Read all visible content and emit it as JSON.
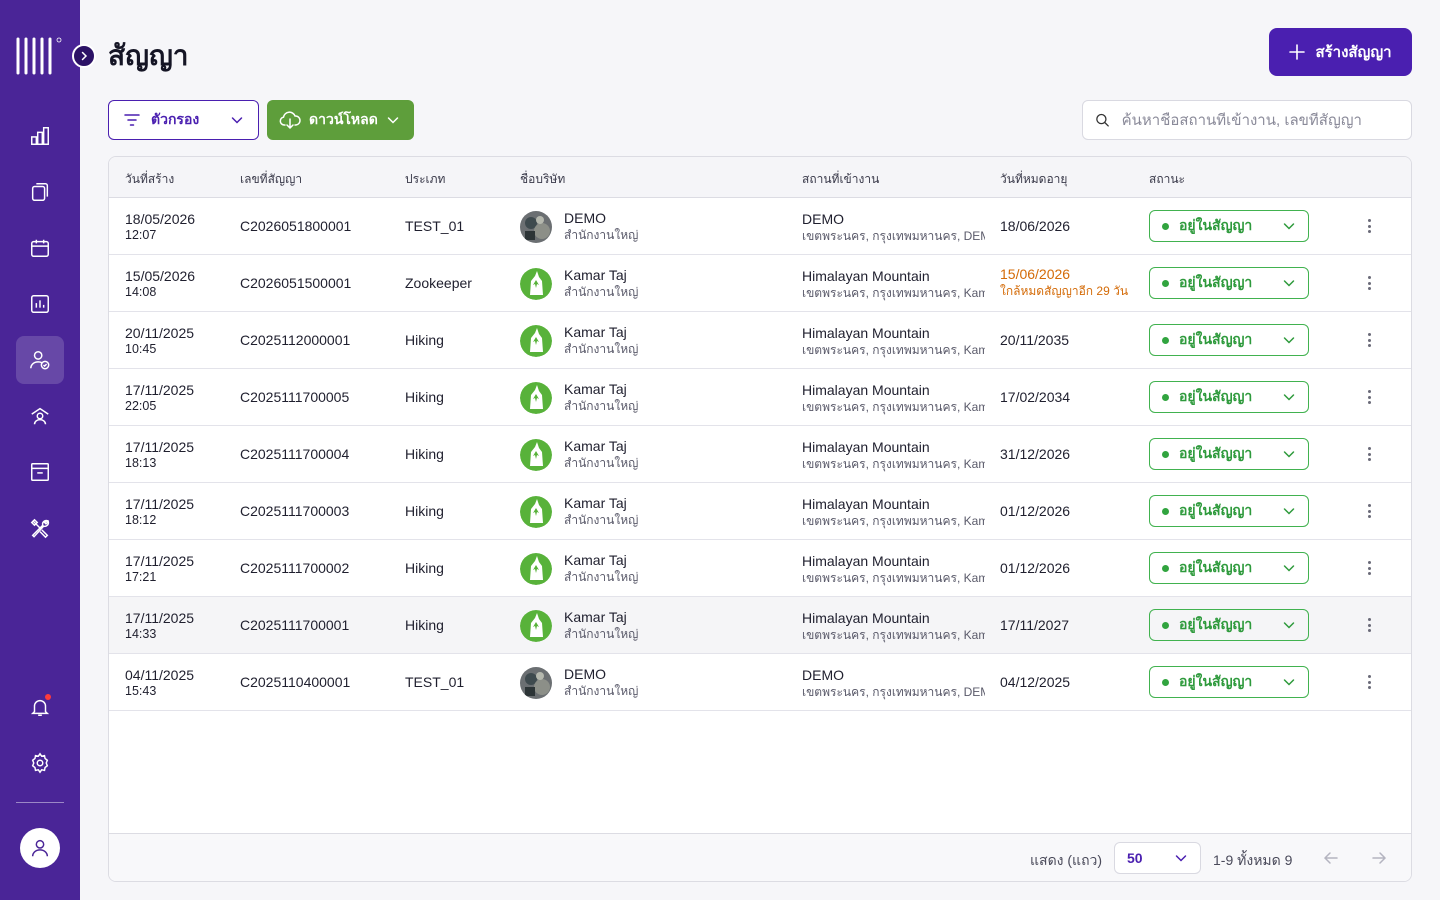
{
  "page": {
    "title": "สัญญา",
    "create_button": "สร้างสัญญา"
  },
  "toolbar": {
    "filter_label": "ตัวกรอง",
    "download_label": "ดาวน์โหลด",
    "search_placeholder": "ค้นหาชื่อสถานที่เข้างาน, เลขที่สัญญา"
  },
  "table": {
    "columns": [
      "วันที่สร้าง",
      "เลขที่สัญญา",
      "ประเภท",
      "ชื่อบริษัท",
      "สถานที่เข้างาน",
      "วันที่หมดอายุ",
      "สถานะ"
    ],
    "rows": [
      {
        "date": "18/05/2026",
        "time": "12:07",
        "number": "C2026051800001",
        "type": "TEST_01",
        "company": "DEMO",
        "branch": "สำนักงานใหญ่",
        "logo": "demo",
        "site": "DEMO",
        "site_addr": "เขตพระนคร, กรุงเทพมหานคร, DEMO",
        "expiry": "18/06/2026",
        "expiry_note": "",
        "status": "อยู่ในสัญญา"
      },
      {
        "date": "15/05/2026",
        "time": "14:08",
        "number": "C2026051500001",
        "type": "Zookeeper",
        "company": "Kamar Taj",
        "branch": "สำนักงานใหญ่",
        "logo": "kamar",
        "site": "Himalayan Mountain",
        "site_addr": "เขตพระนคร, กรุงเทพมหานคร, Kamar Taj",
        "expiry": "15/06/2026",
        "expiry_note": "ใกล้หมดสัญญาอีก 29 วัน",
        "status": "อยู่ในสัญญา"
      },
      {
        "date": "20/11/2025",
        "time": "10:45",
        "number": "C2025112000001",
        "type": "Hiking",
        "company": "Kamar Taj",
        "branch": "สำนักงานใหญ่",
        "logo": "kamar",
        "site": "Himalayan Mountain",
        "site_addr": "เขตพระนคร, กรุงเทพมหานคร, Kamar Taj",
        "expiry": "20/11/2035",
        "expiry_note": "",
        "status": "อยู่ในสัญญา"
      },
      {
        "date": "17/11/2025",
        "time": "22:05",
        "number": "C2025111700005",
        "type": "Hiking",
        "company": "Kamar Taj",
        "branch": "สำนักงานใหญ่",
        "logo": "kamar",
        "site": "Himalayan Mountain",
        "site_addr": "เขตพระนคร, กรุงเทพมหานคร, Kamar Taj",
        "expiry": "17/02/2034",
        "expiry_note": "",
        "status": "อยู่ในสัญญา"
      },
      {
        "date": "17/11/2025",
        "time": "18:13",
        "number": "C2025111700004",
        "type": "Hiking",
        "company": "Kamar Taj",
        "branch": "สำนักงานใหญ่",
        "logo": "kamar",
        "site": "Himalayan Mountain",
        "site_addr": "เขตพระนคร, กรุงเทพมหานคร, Kamar Taj",
        "expiry": "31/12/2026",
        "expiry_note": "",
        "status": "อยู่ในสัญญา"
      },
      {
        "date": "17/11/2025",
        "time": "18:12",
        "number": "C2025111700003",
        "type": "Hiking",
        "company": "Kamar Taj",
        "branch": "สำนักงานใหญ่",
        "logo": "kamar",
        "site": "Himalayan Mountain",
        "site_addr": "เขตพระนคร, กรุงเทพมหานคร, Kamar Taj",
        "expiry": "01/12/2026",
        "expiry_note": "",
        "status": "อยู่ในสัญญา"
      },
      {
        "date": "17/11/2025",
        "time": "17:21",
        "number": "C2025111700002",
        "type": "Hiking",
        "company": "Kamar Taj",
        "branch": "สำนักงานใหญ่",
        "logo": "kamar",
        "site": "Himalayan Mountain",
        "site_addr": "เขตพระนคร, กรุงเทพมหานคร, Kamar Taj",
        "expiry": "01/12/2026",
        "expiry_note": "",
        "status": "อยู่ในสัญญา"
      },
      {
        "date": "17/11/2025",
        "time": "14:33",
        "number": "C2025111700001",
        "type": "Hiking",
        "company": "Kamar Taj",
        "branch": "สำนักงานใหญ่",
        "logo": "kamar",
        "site": "Himalayan Mountain",
        "site_addr": "เขตพระนคร, กรุงเทพมหานคร, Kamar Taj",
        "expiry": "17/11/2027",
        "expiry_note": "",
        "status": "อยู่ในสัญญา"
      },
      {
        "date": "04/11/2025",
        "time": "15:43",
        "number": "C2025110400001",
        "type": "TEST_01",
        "company": "DEMO",
        "branch": "สำนักงานใหญ่",
        "logo": "demo",
        "site": "DEMO",
        "site_addr": "เขตพระนคร, กรุงเทพมหานคร, DEMO",
        "expiry": "04/12/2025",
        "expiry_note": "",
        "status": "อยู่ในสัญญา"
      }
    ]
  },
  "pagination": {
    "rows_label": "แสดง (แถว)",
    "rows_per_page": "50",
    "range": "1-9 ทั้งหมด 9"
  },
  "colors": {
    "sidebar": "#4a2597",
    "primary": "#4a1fb0",
    "download": "#5e9e3b",
    "status_green": "#2e9a3c",
    "warning": "#d46b08"
  },
  "icons": {
    "nav": [
      "chart-bar-icon",
      "documents-icon",
      "calendar-icon",
      "report-icon",
      "user-check-icon",
      "workers-icon",
      "archive-icon",
      "tools-icon"
    ],
    "bottom": [
      "bell-icon",
      "gear-icon"
    ]
  }
}
